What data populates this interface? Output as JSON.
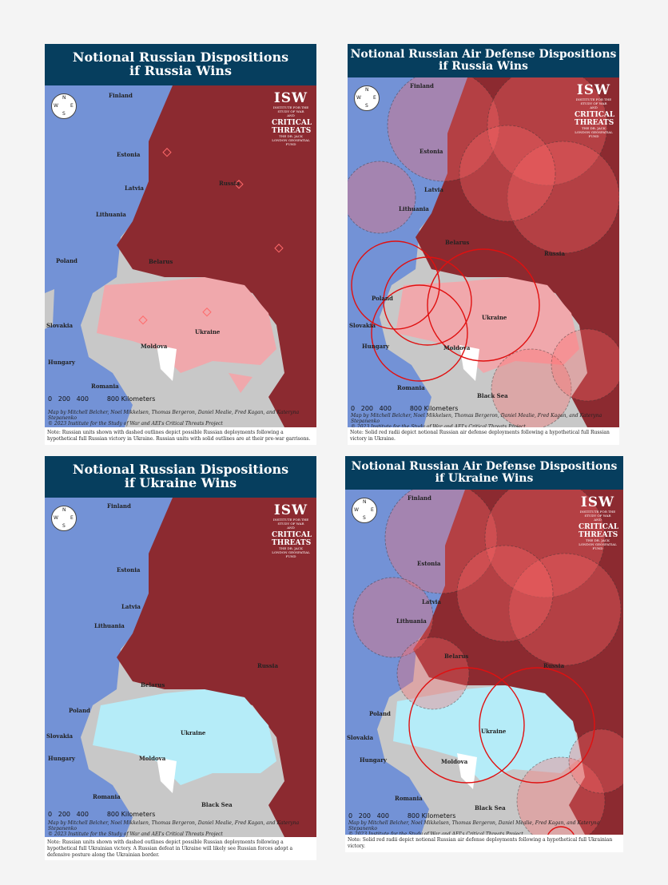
{
  "common": {
    "labels": {
      "finland": "Finland",
      "estonia": "Estonia",
      "latvia": "Latvia",
      "lithuania": "Lithuania",
      "russia": "Russia",
      "belarus": "Belarus",
      "poland": "Poland",
      "ukraine": "Ukraine",
      "moldova": "Moldova",
      "slovakia": "Slovakia",
      "hungary": "Hungary",
      "romania": "Romania",
      "black_sea": "Black Sea"
    },
    "scale": {
      "zero": "0",
      "two_hundred": "200",
      "four_hundred": "400",
      "label": "800 Kilometers"
    },
    "credit_line1": "Map by Mitchell Belcher, Noel Mikkelsen, Thomas Bergeron, Daniel Mealie, Fred Kagan, and Kateryna Stepanenko",
    "credit_line2": "© 2023 Institute for the Study of War and AEI's Critical Threats Project",
    "logo": {
      "isw": "ISW",
      "isw_sub": "INSTITUTE FOR THE STUDY OF WAR",
      "and": "AND",
      "ct": "CRITICAL THREATS",
      "fund": "THE DR. JACK LONDON GEOSPATIAL FUND"
    },
    "compass": {
      "n": "N",
      "s": "S",
      "e": "E",
      "w": "W"
    },
    "colors": {
      "header": "#063e5e",
      "russia": "#8c2a30",
      "nato": "#7392d6",
      "neutral": "#c8c8c8",
      "occupied_ukraine": "#f0a8ac",
      "free_ukraine": "#b5ecf8",
      "air_defense": "#ff6a6a",
      "sea": "#ffffff"
    },
    "icons": [
      "compass-icon",
      "unit-symbol-icon",
      "air-defense-ring-icon",
      "isw-logo-icon",
      "ct-logo-icon"
    ]
  },
  "panels": [
    {
      "title_line1": "Notional Russian Dispositions",
      "title_line2": "if Russia Wins",
      "note": "Note: Russian units shown with dashed outlines depict possible Russian deployments following a hypothetical full Russian victory in Ukraine.  Russian units with solid outlines are at their pre-war garrisons."
    },
    {
      "title_line1": "Notional Russian Air Defense Dispositions",
      "title_line2": "if Russia Wins",
      "note": "Note: Solid red radii depict notional Russian air defense deployments following a hypothetical full Russian victory in Ukraine."
    },
    {
      "title_line1": "Notional Russian Dispositions",
      "title_line2": "if Ukraine Wins",
      "note": "Note: Russian units shown with dashed outlines depict possible Russian deployments following a hypothetical full Ukrainian victory. A Russian defeat in Ukraine will likely see Russian forces adopt a defensive posture along the Ukrainian border."
    },
    {
      "title_line1": "Notional Russian Air Defense Dispositions",
      "title_line2": "if Ukraine Wins",
      "note": "Note: Solid red radii depict notional Russian air defense deployments following a hypothetical full Ukrainian victory."
    }
  ]
}
